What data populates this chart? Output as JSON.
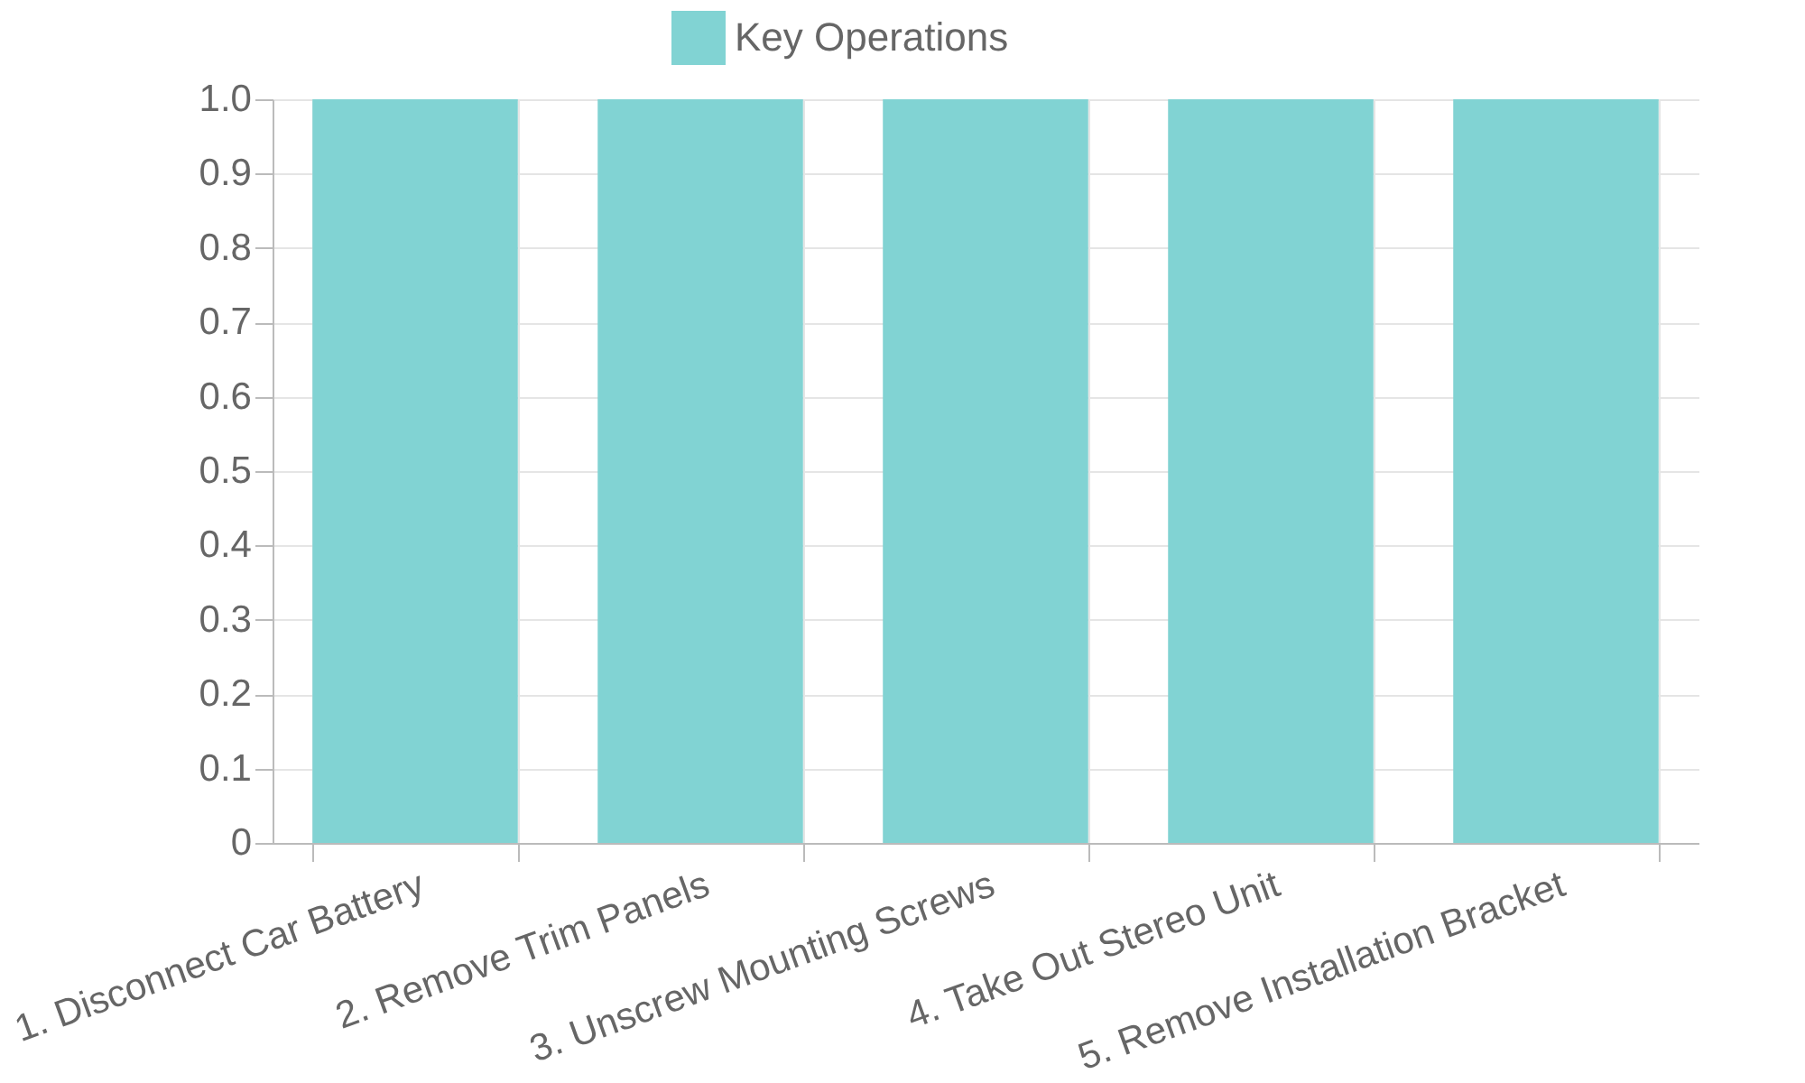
{
  "chart_data": {
    "type": "bar",
    "categories": [
      "1. Disconnect Car Battery",
      "2. Remove Trim Panels",
      "3. Unscrew Mounting Screws",
      "4. Take Out Stereo Unit",
      "5. Remove Installation Bracket"
    ],
    "series": [
      {
        "name": "Key Operations",
        "color": "#81d3d3",
        "values": [
          1.0,
          1.0,
          1.0,
          1.0,
          1.0
        ]
      }
    ],
    "ylim": [
      0,
      1.0
    ],
    "yticks": [
      0,
      {
        "value": 0.1,
        "label": "0.1"
      },
      {
        "value": 0.2,
        "label": "0.2"
      },
      {
        "value": 0.3,
        "label": "0.3"
      },
      {
        "value": 0.4,
        "label": "0.4"
      },
      {
        "value": 0.5,
        "label": "0.5"
      },
      {
        "value": 0.6,
        "label": "0.6"
      },
      {
        "value": 0.7,
        "label": "0.7"
      },
      {
        "value": 0.8,
        "label": "0.8"
      },
      {
        "value": 0.9,
        "label": "0.9"
      },
      {
        "value": 1.0,
        "label": "1.0"
      }
    ],
    "grid": true,
    "legend": "top"
  }
}
